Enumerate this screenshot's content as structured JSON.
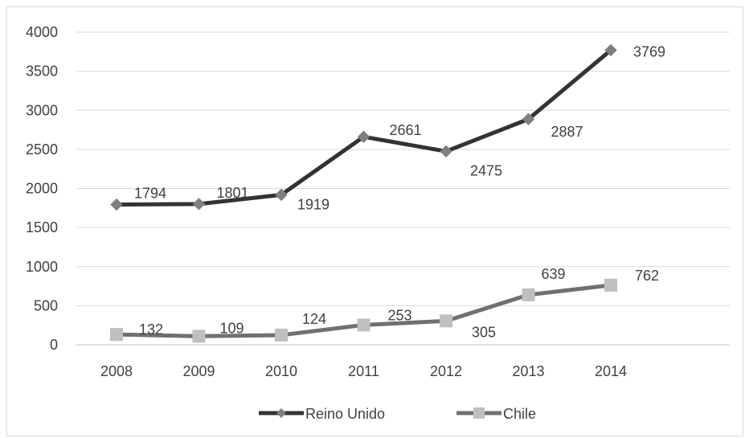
{
  "chart_data": {
    "type": "line",
    "title": "",
    "xlabel": "",
    "ylabel": "",
    "categories": [
      "2008",
      "2009",
      "2010",
      "2011",
      "2012",
      "2013",
      "2014"
    ],
    "ylim": [
      0,
      4000
    ],
    "yticks": [
      0,
      500,
      1000,
      1500,
      2000,
      2500,
      3000,
      3500,
      4000
    ],
    "grid": true,
    "legend_position": "bottom",
    "series": [
      {
        "name": "Reino Unido",
        "values": [
          1794,
          1801,
          1919,
          2661,
          2475,
          2887,
          3769
        ],
        "labels": [
          "1794",
          "1801",
          "1919",
          "2661",
          "2475",
          "2887",
          "3769"
        ],
        "color": "#333333",
        "marker": "diamond",
        "marker_color": "#7f7f7f"
      },
      {
        "name": "Chile",
        "values": [
          132,
          109,
          124,
          253,
          305,
          639,
          762
        ],
        "labels": [
          "132",
          "109",
          "124",
          "253",
          "305",
          "639",
          "762"
        ],
        "color": "#707070",
        "marker": "square",
        "marker_color": "#bfbfbf"
      }
    ]
  }
}
